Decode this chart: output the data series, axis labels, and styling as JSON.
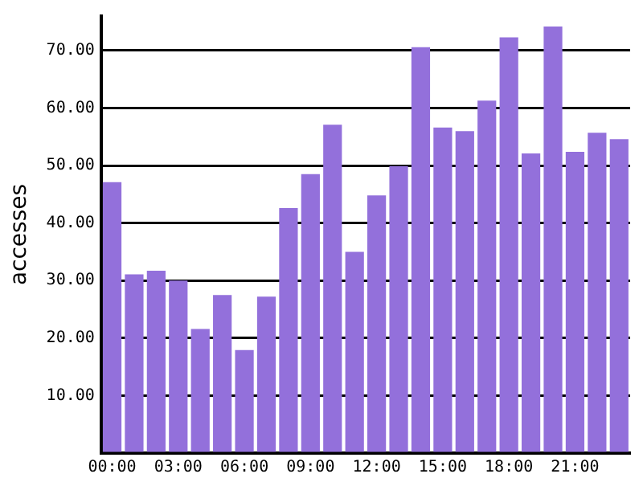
{
  "chart_data": {
    "type": "bar",
    "ylabel": "accesses",
    "categories": [
      "00:00",
      null,
      null,
      "03:00",
      null,
      null,
      "06:00",
      null,
      null,
      "09:00",
      null,
      null,
      "12:00",
      null,
      null,
      "15:00",
      null,
      null,
      "18:00",
      null,
      null,
      "21:00",
      null,
      null
    ],
    "values": [
      47.1,
      31.1,
      31.7,
      30.0,
      21.6,
      27.5,
      17.9,
      27.2,
      42.6,
      48.5,
      57.1,
      35.0,
      44.8,
      49.9,
      70.6,
      56.6,
      56.0,
      61.3,
      72.3,
      52.1,
      74.2,
      52.4,
      55.7,
      54.6
    ],
    "color": "#9370db",
    "ylim": [
      0,
      76
    ],
    "yticks": [
      {
        "value": 0,
        "label": null
      },
      {
        "value": 10,
        "label": "10.00"
      },
      {
        "value": 20,
        "label": "20.00"
      },
      {
        "value": 30,
        "label": "30.00"
      },
      {
        "value": 40,
        "label": "40.00"
      },
      {
        "value": 50,
        "label": "50.00"
      },
      {
        "value": 60,
        "label": "60.00"
      },
      {
        "value": 70,
        "label": "70.00"
      }
    ],
    "grid": "y"
  }
}
